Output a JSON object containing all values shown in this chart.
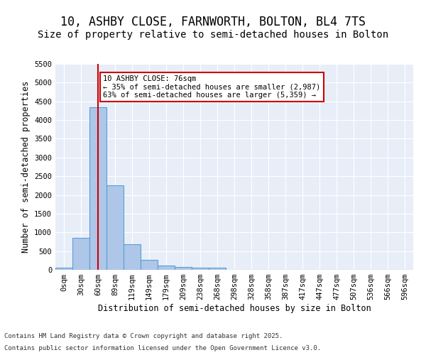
{
  "title": "10, ASHBY CLOSE, FARNWORTH, BOLTON, BL4 7TS",
  "subtitle": "Size of property relative to semi-detached houses in Bolton",
  "xlabel": "Distribution of semi-detached houses by size in Bolton",
  "ylabel": "Number of semi-detached properties",
  "bar_values": [
    50,
    850,
    4350,
    2250,
    680,
    260,
    120,
    70,
    50,
    50,
    0,
    0,
    0,
    0,
    0,
    0,
    0,
    0,
    0,
    0,
    0
  ],
  "bar_labels": [
    "0sqm",
    "30sqm",
    "60sqm",
    "89sqm",
    "119sqm",
    "149sqm",
    "179sqm",
    "209sqm",
    "238sqm",
    "268sqm",
    "298sqm",
    "328sqm",
    "358sqm",
    "387sqm",
    "417sqm",
    "447sqm",
    "477sqm",
    "507sqm",
    "536sqm",
    "566sqm",
    "596sqm"
  ],
  "bar_color": "#aec6e8",
  "bar_edge_color": "#5a9fd4",
  "ylim": [
    0,
    5500
  ],
  "yticks": [
    0,
    500,
    1000,
    1500,
    2000,
    2500,
    3000,
    3500,
    4000,
    4500,
    5000,
    5500
  ],
  "red_line_x": 2.0,
  "annotation_text": "10 ASHBY CLOSE: 76sqm\n← 35% of semi-detached houses are smaller (2,987)\n63% of semi-detached houses are larger (5,359) →",
  "annotation_box_color": "#ffffff",
  "annotation_box_edge": "#cc0000",
  "red_line_color": "#cc0000",
  "background_color": "#e8eef8",
  "footer_line1": "Contains HM Land Registry data © Crown copyright and database right 2025.",
  "footer_line2": "Contains public sector information licensed under the Open Government Licence v3.0.",
  "title_fontsize": 12,
  "subtitle_fontsize": 10,
  "axis_label_fontsize": 8.5,
  "tick_label_fontsize": 7.5
}
